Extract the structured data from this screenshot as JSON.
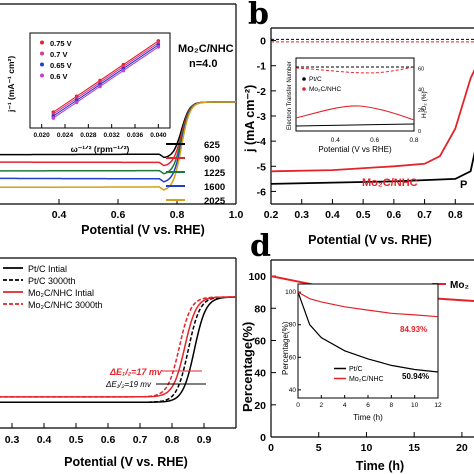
{
  "panels": {
    "a": {
      "xlabel": "Potential (V vs. RHE)",
      "xticks": [
        "0.4",
        "0.6",
        "0.8",
        "1.0"
      ],
      "sample_label": "Mo₂C/NHC",
      "n_label": "n=4.0",
      "legend": [
        "625",
        "900",
        "1225",
        "1600",
        "2025"
      ],
      "legend_colors": [
        "#000000",
        "#e3242b",
        "#1f7a3a",
        "#2040c8",
        "#d4a017"
      ],
      "inset": {
        "ylabel": "j⁻¹ (mA⁻¹ cm²)",
        "xlabel": "ω⁻¹ᐟ² (rpm⁻¹ᐟ²)",
        "xticks": [
          "0.020",
          "0.024",
          "0.028",
          "0.032",
          "0.036",
          "0.040"
        ],
        "legend": [
          "0.75 V",
          "0.7 V",
          "0.65 V",
          "0.6 V"
        ],
        "legend_colors": [
          "#e3242b",
          "#d23c9a",
          "#2040c8",
          "#c43dd6"
        ]
      }
    },
    "b": {
      "letter": "b",
      "xlabel": "Potential (V vs. RHE)",
      "ylabel": "j (mA cm⁻²)",
      "xticks": [
        "0.2",
        "0.3",
        "0.4",
        "0.5",
        "0.6",
        "0.7",
        "0.8"
      ],
      "yticks": [
        "0",
        "-1",
        "-2",
        "-3",
        "-4",
        "-5",
        "-6"
      ],
      "sample_label": "Mo₂C/NHC",
      "pt_label": "P",
      "inset": {
        "ylabel_left": "Electron Transfer Number",
        "ylabel_right": "H₂O₂ (%)",
        "xlabel": "Potential (V vs RHE)",
        "legend": [
          "Pt/C",
          "Mo₂C/NHC"
        ],
        "xticks": [
          "0.4",
          "0.6",
          "0.8"
        ],
        "right_ticks": [
          "60",
          "40",
          "20",
          "0"
        ]
      }
    },
    "c": {
      "xlabel": "Potential (V vs. RHE)",
      "xticks": [
        "0.3",
        "0.4",
        "0.5",
        "0.6",
        "0.7",
        "0.8",
        "0.9"
      ],
      "legend": [
        "Pt/C Intial",
        "Pt/C 3000th",
        "Mo₂C/NHC Intial",
        "Mo₂C/NHC 3000th"
      ],
      "annot_red": "ΔE₁/₂=17 mv",
      "annot_black": "ΔE₁/₂=19 mv"
    },
    "d": {
      "letter": "d",
      "xlabel": "Time (h)",
      "ylabel": "Percentage(%)",
      "xticks": [
        "0",
        "5",
        "10",
        "15",
        "20"
      ],
      "yticks": [
        "100",
        "80",
        "60",
        "40",
        "20",
        "0"
      ],
      "legend_partial": "Mo₂",
      "inset": {
        "ylabel": "Percentage(%)",
        "xlabel": "Time (h)",
        "xticks": [
          "0",
          "2",
          "4",
          "6",
          "8",
          "10",
          "12"
        ],
        "yticks": [
          "100",
          "80",
          "60",
          "40"
        ],
        "legend": [
          "Pt/C",
          "Mo₂C/NHC"
        ],
        "val_red": "84.93%",
        "val_black": "50.94%"
      }
    }
  },
  "chart_data": [
    {
      "type": "line",
      "panel": "a",
      "xlabel": "Potential (V vs. RHE)",
      "xlim": [
        0.2,
        1.0
      ],
      "series": [
        {
          "name": "625",
          "color": "#000000",
          "limiting_current": -3.2
        },
        {
          "name": "900",
          "color": "#e3242b",
          "limiting_current": -3.7
        },
        {
          "name": "1225",
          "color": "#1f7a3a",
          "limiting_current": -4.2
        },
        {
          "name": "1600",
          "color": "#2040c8",
          "limiting_current": -4.7
        },
        {
          "name": "2025",
          "color": "#d4a017",
          "limiting_current": -5.2
        }
      ],
      "onset_potential": 0.86
    },
    {
      "type": "scatter",
      "panel": "a-inset",
      "xlim": [
        0.018,
        0.042
      ],
      "series": [
        {
          "name": "0.75 V",
          "x": [
            0.022,
            0.026,
            0.03,
            0.034,
            0.04
          ],
          "y": [
            0.28,
            0.36,
            0.44,
            0.52,
            0.64
          ]
        },
        {
          "name": "0.7 V",
          "x": [
            0.022,
            0.026,
            0.03,
            0.034,
            0.04
          ],
          "y": [
            0.27,
            0.35,
            0.43,
            0.51,
            0.63
          ]
        },
        {
          "name": "0.65 V",
          "x": [
            0.022,
            0.026,
            0.03,
            0.034,
            0.04
          ],
          "y": [
            0.26,
            0.34,
            0.42,
            0.5,
            0.62
          ]
        },
        {
          "name": "0.6 V",
          "x": [
            0.022,
            0.026,
            0.03,
            0.034,
            0.04
          ],
          "y": [
            0.25,
            0.33,
            0.41,
            0.49,
            0.61
          ]
        }
      ]
    },
    {
      "type": "line",
      "panel": "b",
      "xlabel": "Potential (V vs. RHE)",
      "ylabel": "j (mA cm⁻²)",
      "xlim": [
        0.2,
        0.9
      ],
      "ylim": [
        -6.5,
        0.5
      ],
      "series": [
        {
          "name": "Mo₂C/NHC",
          "x": [
            0.2,
            0.4,
            0.6,
            0.7,
            0.75,
            0.8,
            0.85,
            0.9
          ],
          "y": [
            -5.2,
            -5.15,
            -5.0,
            -4.9,
            -4.6,
            -3.5,
            -1.5,
            -0.2
          ]
        },
        {
          "name": "Pt/C",
          "x": [
            0.2,
            0.4,
            0.6,
            0.8,
            0.85,
            0.88,
            0.9
          ],
          "y": [
            -5.7,
            -5.65,
            -5.6,
            -5.5,
            -5.2,
            -3.5,
            -1.0
          ]
        }
      ]
    },
    {
      "type": "line",
      "panel": "c",
      "xlabel": "Potential (V vs. RHE)",
      "xlim": [
        0.2,
        1.0
      ],
      "series": [
        {
          "name": "Pt/C Intial",
          "halfwave": 0.87
        },
        {
          "name": "Pt/C 3000th",
          "halfwave": 0.851
        },
        {
          "name": "Mo₂C/NHC Intial",
          "halfwave": 0.84
        },
        {
          "name": "Mo₂C/NHC 3000th",
          "halfwave": 0.823
        }
      ]
    },
    {
      "type": "line",
      "panel": "d",
      "xlabel": "Time (h)",
      "ylabel": "Percentage(%)",
      "xlim": [
        0,
        22
      ],
      "ylim": [
        0,
        110
      ],
      "series": [
        {
          "name": "Mo₂C/NHC",
          "x": [
            0,
            5,
            10,
            15,
            20,
            22
          ],
          "y": [
            100,
            94,
            90,
            87,
            85,
            84.5
          ]
        }
      ]
    },
    {
      "type": "line",
      "panel": "d-inset",
      "xlabel": "Time (h)",
      "ylabel": "Percentage(%)",
      "xlim": [
        0,
        12
      ],
      "ylim": [
        35,
        105
      ],
      "series": [
        {
          "name": "Pt/C",
          "x": [
            0,
            1,
            2,
            4,
            6,
            8,
            10,
            12
          ],
          "y": [
            100,
            80,
            72,
            64,
            59,
            55,
            52.5,
            50.94
          ]
        },
        {
          "name": "Mo₂C/NHC",
          "x": [
            0,
            1,
            2,
            4,
            6,
            8,
            10,
            12
          ],
          "y": [
            100,
            96,
            94,
            91,
            89,
            87,
            86,
            84.93
          ]
        }
      ]
    }
  ]
}
